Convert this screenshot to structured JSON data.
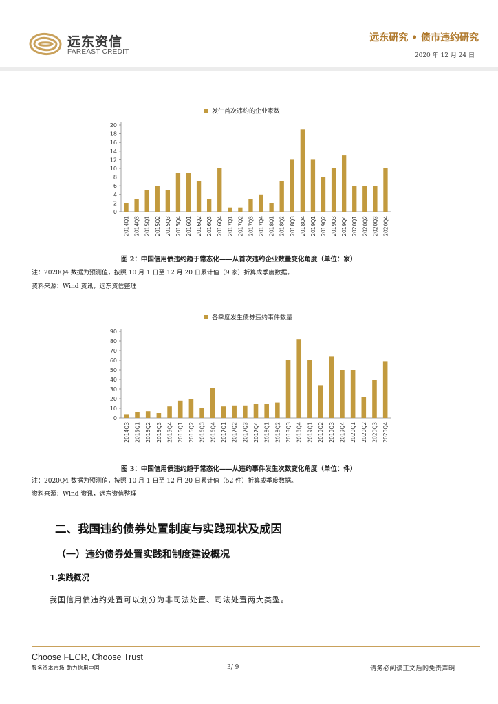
{
  "header": {
    "brand_cn": "远东资信",
    "brand_en": "FAREAST CREDIT",
    "section": "远东研究 • 债市违约研究",
    "date": "2020 年 12 月 24 日"
  },
  "figure2": {
    "caption": "图 2：中国信用债违约趋于常态化——从首次违约企业数量变化角度（单位：家）",
    "note": "注：2020Q4 数据为预测值，按照 10 月 1 日至 12 月 20 日累计值（9 家）折算成季度数据。",
    "source": "资料来源：Wind 资讯，远东资信整理"
  },
  "figure3": {
    "caption": "图 3：中国信用债违约趋于常态化——从违约事件发生次数变化角度（单位：件）",
    "note": "注：2020Q4 数据为预测值，按照 10 月 1 日至 12 月 20 日累计值（52 件）折算成季度数据。",
    "source": "资料来源：Wind 资讯，远东资信整理"
  },
  "section": {
    "h2": "二、我国违约债券处置制度与实践现状及成因",
    "h3": "（一）违约债券处置实践和制度建设概况",
    "h4": "1.实践概况",
    "body": "我国信用债违约处置可以划分为非司法处置、司法处置两大类型。"
  },
  "footer": {
    "slogan": "Choose FECR, Choose Trust",
    "sub": "服务资本市场  助力信用中国",
    "page": "3/ 9",
    "disclaimer": "请务必阅读正文后的免责声明"
  },
  "colors": {
    "bar": "#c29a3e",
    "accent": "#b07a2e",
    "rule": "#c9a15b"
  },
  "chart_data": [
    {
      "type": "bar",
      "title": "",
      "series": [
        {
          "name": "发生首次违约的企业家数",
          "values": [
            2,
            3,
            5,
            6,
            5,
            9,
            9,
            7,
            3,
            10,
            1,
            1,
            3,
            4,
            2,
            7,
            12,
            19,
            12,
            8,
            10,
            13,
            6,
            6,
            6,
            10
          ]
        }
      ],
      "categories": [
        "2014Q1",
        "2014Q3",
        "2015Q1",
        "2015Q2",
        "2015Q3",
        "2015Q4",
        "2016Q1",
        "2016Q2",
        "2016Q3",
        "2016Q4",
        "2017Q1",
        "2017Q2",
        "2017Q3",
        "2017Q4",
        "2018Q1",
        "2018Q2",
        "2018Q3",
        "2018Q4",
        "2019Q1",
        "2019Q2",
        "2019Q3",
        "2019Q4",
        "2020Q1",
        "2020Q2",
        "2020Q3",
        "2020Q4"
      ],
      "ylim": [
        0,
        20
      ],
      "yticks": [
        0,
        2,
        4,
        6,
        8,
        10,
        12,
        14,
        16,
        18,
        20
      ],
      "legend_position": "top-center",
      "grid": false
    },
    {
      "type": "bar",
      "title": "",
      "series": [
        {
          "name": "各季度发生债券违约事件数量",
          "values": [
            4,
            6,
            7,
            5,
            12,
            18,
            20,
            10,
            31,
            12,
            13,
            13,
            15,
            15,
            16,
            60,
            82,
            60,
            34,
            64,
            50,
            50,
            22,
            40,
            59
          ]
        }
      ],
      "categories": [
        "2014Q3",
        "2015Q1",
        "2015Q2",
        "2015Q3",
        "2015Q4",
        "2016Q1",
        "2016Q2",
        "2016Q3",
        "2016Q4",
        "2017Q1",
        "2017Q2",
        "2017Q3",
        "2017Q4",
        "2018Q1",
        "2018Q2",
        "2018Q3",
        "2018Q4",
        "2019Q1",
        "2019Q2",
        "2019Q3",
        "2019Q4",
        "2020Q1",
        "2020Q2",
        "2020Q3",
        "2020Q4"
      ],
      "ylim": [
        0,
        90
      ],
      "yticks": [
        0,
        10,
        20,
        30,
        40,
        50,
        60,
        70,
        80,
        90
      ],
      "legend_position": "top-center",
      "grid": false
    }
  ]
}
